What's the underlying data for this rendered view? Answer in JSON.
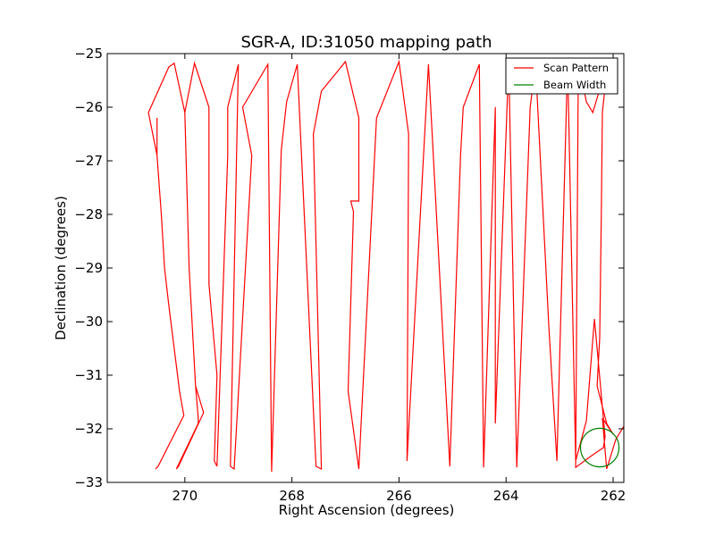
{
  "chart_data": {
    "type": "line",
    "title": "SGR-A, ID:31050 mapping path",
    "xlabel": "Right Ascension (degrees)",
    "ylabel": "Declination (degrees)",
    "xlim": [
      271.45,
      261.8
    ],
    "ylim": [
      -33,
      -25
    ],
    "x_inverted": true,
    "xticks": [
      270,
      268,
      266,
      264,
      262
    ],
    "xtick_labels": [
      "270",
      "268",
      "266",
      "264",
      "262"
    ],
    "yticks": [
      -25,
      -26,
      -27,
      -28,
      -29,
      -30,
      -31,
      -32,
      -33
    ],
    "ytick_labels": [
      "−25",
      "−26",
      "−27",
      "−28",
      "−29",
      "−30",
      "−31",
      "−32",
      "−33"
    ],
    "grid": false,
    "legend": {
      "placement": "top-right",
      "entries": [
        "Scan Pattern",
        "Beam Width"
      ]
    },
    "colors": {
      "scan": "#ff0000",
      "beam": "#008000"
    },
    "series": [
      {
        "name": "Scan Pattern",
        "type": "line",
        "points": [
          [
            270.52,
            -26.2
          ],
          [
            270.52,
            -26.9
          ],
          [
            270.44,
            -28.0
          ],
          [
            270.38,
            -29.0
          ],
          [
            270.3,
            -29.7
          ],
          [
            270.2,
            -30.5
          ],
          [
            270.1,
            -31.3
          ],
          [
            270.02,
            -31.75
          ],
          [
            270.5,
            -32.7
          ],
          [
            270.55,
            -32.75
          ],
          [
            270.5,
            -32.7
          ],
          [
            270.02,
            -31.75
          ],
          [
            270.1,
            -31.3
          ],
          [
            270.2,
            -30.5
          ],
          [
            270.3,
            -29.7
          ],
          [
            270.38,
            -29.0
          ],
          [
            270.44,
            -28.0
          ],
          [
            270.52,
            -26.9
          ],
          [
            270.6,
            -26.5
          ],
          [
            270.68,
            -26.1
          ],
          [
            270.3,
            -25.25
          ],
          [
            270.2,
            -25.18
          ],
          [
            270.0,
            -26.1
          ],
          [
            269.92,
            -29.0
          ],
          [
            269.8,
            -31.2
          ],
          [
            269.65,
            -31.7
          ],
          [
            270.12,
            -32.7
          ],
          [
            270.16,
            -32.75
          ],
          [
            269.75,
            -31.9
          ],
          [
            269.75,
            -31.8
          ],
          [
            269.8,
            -31.2
          ],
          [
            269.92,
            -29.0
          ],
          [
            270.0,
            -26.1
          ],
          [
            269.82,
            -25.18
          ],
          [
            269.55,
            -26.0
          ],
          [
            269.55,
            -29.3
          ],
          [
            269.4,
            -31.0
          ],
          [
            269.45,
            -32.6
          ],
          [
            269.4,
            -32.7
          ],
          [
            269.2,
            -26.9
          ],
          [
            269.2,
            -26.0
          ],
          [
            269.0,
            -25.2
          ],
          [
            269.15,
            -32.7
          ],
          [
            269.08,
            -32.75
          ],
          [
            268.75,
            -26.9
          ],
          [
            268.92,
            -26.0
          ],
          [
            268.45,
            -25.2
          ],
          [
            268.38,
            -32.8
          ],
          [
            268.2,
            -26.8
          ],
          [
            268.1,
            -25.9
          ],
          [
            267.9,
            -25.2
          ],
          [
            267.55,
            -32.7
          ],
          [
            267.45,
            -32.75
          ],
          [
            267.6,
            -26.5
          ],
          [
            267.45,
            -25.7
          ],
          [
            267.0,
            -25.15
          ],
          [
            266.75,
            -26.2
          ],
          [
            266.75,
            -27.75
          ],
          [
            266.9,
            -27.75
          ],
          [
            266.85,
            -27.95
          ],
          [
            266.95,
            -31.3
          ],
          [
            266.75,
            -32.75
          ],
          [
            266.42,
            -26.2
          ],
          [
            266.0,
            -25.15
          ],
          [
            265.82,
            -26.5
          ],
          [
            265.85,
            -32.6
          ],
          [
            265.45,
            -25.2
          ],
          [
            265.05,
            -32.7
          ],
          [
            264.85,
            -26.9
          ],
          [
            264.8,
            -26.0
          ],
          [
            264.5,
            -25.2
          ],
          [
            264.42,
            -32.72
          ],
          [
            264.2,
            -26.0
          ],
          [
            264.2,
            -31.9
          ],
          [
            263.95,
            -25.15
          ],
          [
            263.8,
            -32.72
          ],
          [
            263.55,
            -26.0
          ],
          [
            263.45,
            -25.2
          ],
          [
            263.2,
            -30.1
          ],
          [
            263.05,
            -32.6
          ],
          [
            262.85,
            -25.15
          ],
          [
            262.7,
            -32.6
          ],
          [
            262.5,
            -31.85
          ],
          [
            262.35,
            -29.95
          ],
          [
            262.15,
            -32.15
          ],
          [
            262.18,
            -32.35
          ],
          [
            262.4,
            -32.5
          ],
          [
            262.7,
            -32.72
          ],
          [
            262.65,
            -25.15
          ],
          [
            262.5,
            -25.9
          ],
          [
            262.38,
            -26.1
          ],
          [
            262.1,
            -25.15
          ],
          [
            262.2,
            -26.1
          ],
          [
            262.22,
            -28.0
          ],
          [
            262.25,
            -30.3
          ],
          [
            262.3,
            -31.2
          ],
          [
            262.12,
            -31.9
          ],
          [
            262.0,
            -32.1
          ],
          [
            262.2,
            -31.8
          ],
          [
            262.12,
            -32.75
          ],
          [
            261.95,
            -32.2
          ],
          [
            261.8,
            -31.95
          ]
        ]
      },
      {
        "name": "Beam Width",
        "type": "circle",
        "center": [
          262.25,
          -32.35
        ],
        "radius_deg": 0.36
      }
    ]
  }
}
